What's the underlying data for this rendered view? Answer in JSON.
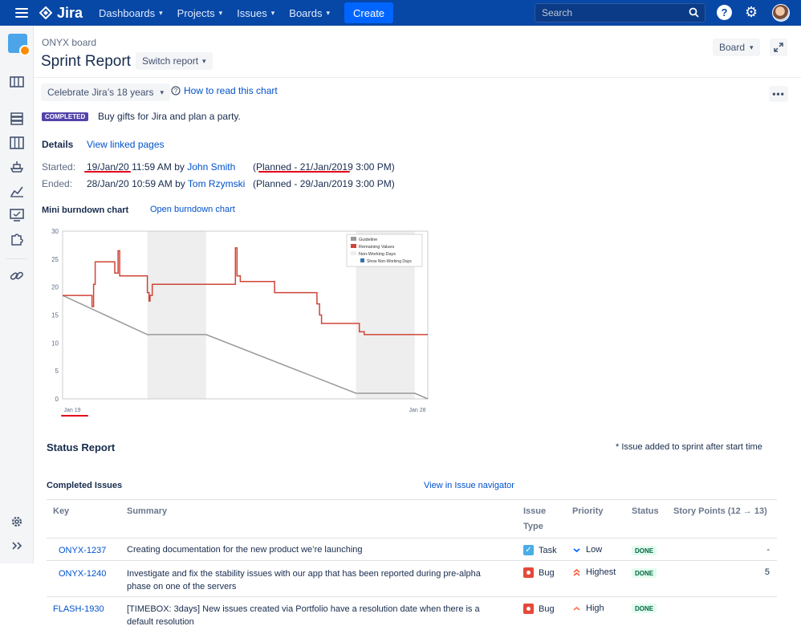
{
  "topnav": {
    "logo_text": "Jira",
    "items": [
      "Dashboards",
      "Projects",
      "Issues",
      "Boards"
    ],
    "create_label": "Create",
    "search_placeholder": "Search"
  },
  "header": {
    "board_name": "ONYX board",
    "title": "Sprint Report",
    "switch_label": "Switch report",
    "board_label": "Board"
  },
  "sprint": {
    "selected": "Celebrate Jira’s 18 years",
    "howto_label": "How to read this chart",
    "status_lozenge": "COMPLETED",
    "goal": "Buy gifts for Jira and plan a party.",
    "details_label": "Details",
    "linked_label": "View linked pages",
    "started_label": "Started:",
    "started_date": "19/Jan/20",
    "started_time": "11:59 AM by",
    "started_by": "John Smith",
    "started_planned": "(Planned - 21/Jan/2019 3:00 PM)",
    "ended_label": "Ended:",
    "ended_date": "28/Jan/20",
    "ended_time": "10:59 AM by",
    "ended_by": "Tom Rzymski",
    "ended_planned": "(Planned - 29/Jan/2019 3:00 PM)",
    "mini_label": "Mini burndown chart",
    "open_burndown": "Open burndown chart"
  },
  "chart_data": {
    "type": "line",
    "x_tick_labels": [
      "Jan 19",
      "Jan 28"
    ],
    "y_ticks": [
      0,
      5,
      10,
      15,
      20,
      25,
      30
    ],
    "ylim": [
      0,
      30
    ],
    "grid": false,
    "legend_position": "top-right",
    "legend": [
      "Guideline",
      "Remaining Values",
      "Non-Working Days",
      "Show Non-Working Days"
    ],
    "colors": {
      "guideline": "#999999",
      "remaining": "#d04437",
      "non_working": "#eeeeee",
      "checkbox": "#3572b0"
    },
    "non_working_days": [
      [
        2.6,
        4.4
      ],
      [
        9.0,
        10.8
      ]
    ],
    "guideline": {
      "x": [
        0,
        2.6,
        4.4,
        9.0,
        10.8,
        11.2
      ],
      "y": [
        18.5,
        11.5,
        11.5,
        1,
        1,
        0
      ]
    },
    "remaining": {
      "x": [
        0,
        0.9,
        0.9,
        0.95,
        0.95,
        1.0,
        1.0,
        1.6,
        1.6,
        1.7,
        1.7,
        1.75,
        1.75,
        2.6,
        2.6,
        2.65,
        2.65,
        2.68,
        2.68,
        2.75,
        2.75,
        5.3,
        5.3,
        5.35,
        5.35,
        5.45,
        5.45,
        6.5,
        6.5,
        7.8,
        7.8,
        7.88,
        7.88,
        7.94,
        7.94,
        8.2,
        8.2,
        9.1,
        9.1,
        9.25,
        9.25,
        11.2
      ],
      "y": [
        18.5,
        18.5,
        16.5,
        16.5,
        20.5,
        20.5,
        24.5,
        24.5,
        22.5,
        22.5,
        26.5,
        26.5,
        22,
        22,
        19,
        19,
        17.5,
        17.5,
        18.5,
        18.5,
        20.5,
        20.5,
        27,
        27,
        22,
        22,
        21,
        21,
        19,
        19,
        17,
        17,
        15,
        15,
        13.5,
        13.5,
        13.5,
        13.5,
        12,
        12,
        11.5,
        11.5
      ]
    }
  },
  "status": {
    "title": "Status Report",
    "added_note": "* Issue added to sprint after start time",
    "completed_title": "Completed Issues",
    "navigator_link": "View in Issue navigator",
    "columns": {
      "key": "Key",
      "summary": "Summary",
      "type_1": "Issue",
      "type_2": "Type",
      "priority": "Priority",
      "status": "Status",
      "points": "Story Points (12 → 13)"
    },
    "rows": [
      {
        "key": "ONYX-1237",
        "summary_1": "Creating documentation for the new product we’re launching",
        "summary_2": "",
        "type": "Task",
        "type_icon": "task-icon",
        "priority": "Low",
        "priority_icon": "chevron-down-icon",
        "status": "DONE",
        "points": "-"
      },
      {
        "key": "ONYX-1240",
        "summary_1": "Investigate and fix the stability issues with our app that has been reported during pre-alpha",
        "summary_2": "phase on one of the servers",
        "type": "Bug",
        "type_icon": "bug-icon",
        "priority": "Highest",
        "priority_icon": "double-chevron-up-icon",
        "status": "DONE",
        "points": "5"
      },
      {
        "key": "FLASH-1930",
        "summary_1": "[TIMEBOX: 3days] New issues created via Portfolio have a resolution date when there is a",
        "summary_2": "default resolution",
        "type": "Bug",
        "type_icon": "bug-icon",
        "priority": "High",
        "priority_icon": "chevron-up-icon",
        "status": "DONE",
        "points": "-"
      }
    ]
  }
}
